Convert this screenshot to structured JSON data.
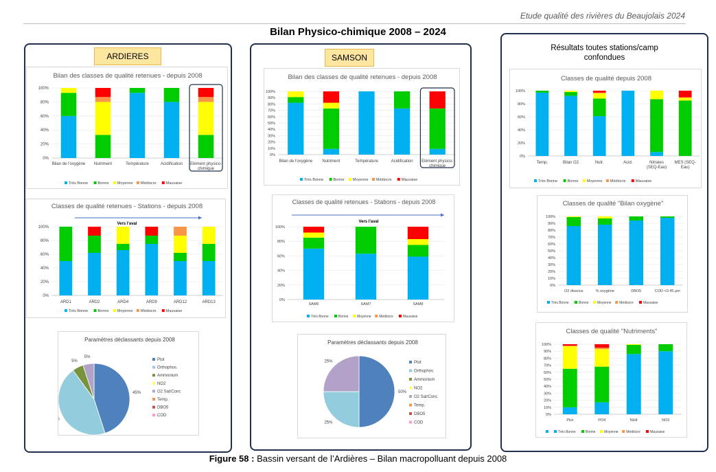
{
  "header": {
    "doc_title": "Etude qualité des rivières du Beaujolais 2024"
  },
  "main_title": "Bilan Physico-chimique 2008 – 2024",
  "caption": {
    "bold": "Figure 58 :",
    "text": " Bassin versant de l’Ardières – Bilan macropolluant depuis 2008"
  },
  "colors": {
    "tres_bonne": "#00b0f0",
    "bonne": "#00cc00",
    "moyenne": "#ffff00",
    "mediocre": "#f79646",
    "mauvaise": "#ff0000",
    "panel_border": "#1f2f4e",
    "site_label_bg": "#fde6a0"
  },
  "panels": {
    "ardieres": {
      "label": "ARDIERES"
    },
    "samson": {
      "label": "SAMSON"
    },
    "results": {
      "title_line1": "Résultats toutes stations/camp",
      "title_line2": "confondues"
    }
  },
  "chart_data": [
    {
      "id": "ard_classes",
      "type": "bar",
      "stacked": true,
      "title": "Bilan des classes de qualité retenues - depuis 2008",
      "categories": [
        [
          "Bilan de l'oxygène"
        ],
        [
          "Nutriment"
        ],
        [
          "Température"
        ],
        [
          "Acidification"
        ],
        [
          "Elément physico-",
          "chimique"
        ]
      ],
      "series": [
        {
          "name": "Très Bonne",
          "values": [
            60,
            0,
            93,
            80,
            0
          ]
        },
        {
          "name": "Bonne",
          "values": [
            33,
            33,
            7,
            20,
            33
          ]
        },
        {
          "name": "Moyenne",
          "values": [
            7,
            47,
            0,
            0,
            47
          ]
        },
        {
          "name": "Médiocre",
          "values": [
            0,
            7,
            0,
            0,
            7
          ]
        },
        {
          "name": "Mauvaise",
          "values": [
            0,
            13,
            0,
            0,
            13
          ]
        }
      ],
      "y_ticks": [
        "0%",
        "20%",
        "40%",
        "60%",
        "80%",
        "100%"
      ],
      "ylim": [
        0,
        100
      ],
      "highlight_last": true
    },
    {
      "id": "ard_stations",
      "type": "bar",
      "stacked": true,
      "title": "Classes de qualité retenues  - Stations - depuis 2008",
      "annotation": "Vers l'aval",
      "categories": [
        [
          "ARD1"
        ],
        [
          "ARD2"
        ],
        [
          "ARD4"
        ],
        [
          "ARD9"
        ],
        [
          "ARD12"
        ],
        [
          "ARD13"
        ]
      ],
      "series": [
        {
          "name": "Très Bonne",
          "values": [
            50,
            62,
            66,
            75,
            50,
            50
          ]
        },
        {
          "name": "Bonne",
          "values": [
            50,
            25,
            9,
            12,
            12,
            25
          ]
        },
        {
          "name": "Moyenne",
          "values": [
            0,
            0,
            25,
            0,
            25,
            25
          ]
        },
        {
          "name": "Médiocre",
          "values": [
            0,
            0,
            0,
            0,
            13,
            0
          ]
        },
        {
          "name": "Mauvaise",
          "values": [
            0,
            13,
            0,
            13,
            0,
            0
          ]
        }
      ],
      "y_ticks": [
        "0%",
        "20%",
        "40%",
        "60%",
        "80%",
        "100%"
      ],
      "ylim": [
        0,
        100
      ]
    },
    {
      "id": "ard_pie",
      "type": "pie",
      "title": "Paramètres déclassants depuis 2008",
      "legend": [
        "Ptot",
        "Orthophos.",
        "Ammonium",
        "NO2",
        "O2 Sat/Conc",
        "Temp.",
        "DBO5",
        "COD"
      ],
      "legend_colors": [
        "#4f81bd",
        "#93cddd",
        "#77933c",
        "#ffff66",
        "#b3a2c7",
        "#f79646",
        "#c0504d",
        "#ff99cc"
      ],
      "slices": [
        {
          "name": "Ptot",
          "value": 45,
          "label": "45%",
          "color": "#4f81bd"
        },
        {
          "name": "Orthophos.",
          "value": 45,
          "label": "45%",
          "color": "#93cddd"
        },
        {
          "name": "Ammonium",
          "value": 5,
          "label": "5%",
          "color": "#77933c"
        },
        {
          "name": "O2 Sat/Conc",
          "value": 5,
          "label": "5%",
          "color": "#b3a2c7"
        }
      ]
    },
    {
      "id": "sam_classes",
      "type": "bar",
      "stacked": true,
      "title": "Bilan des classes de qualité retenues - depuis 2008",
      "categories": [
        [
          "Bilan de l'oxygène"
        ],
        [
          "Nutriment"
        ],
        [
          "Température"
        ],
        [
          "Acidification"
        ],
        [
          "Elément physico-",
          "chimique"
        ]
      ],
      "series": [
        {
          "name": "Très Bonne",
          "values": [
            82,
            9,
            100,
            73,
            9
          ]
        },
        {
          "name": "Bonne",
          "values": [
            9,
            64,
            0,
            27,
            64
          ]
        },
        {
          "name": "Moyenne",
          "values": [
            9,
            9,
            0,
            0,
            0
          ]
        },
        {
          "name": "Médiocre",
          "values": [
            0,
            0,
            0,
            0,
            0
          ]
        },
        {
          "name": "Mauvaise",
          "values": [
            0,
            18,
            0,
            0,
            27
          ]
        }
      ],
      "y_ticks": [
        "0%",
        "10%",
        "20%",
        "30%",
        "40%",
        "50%",
        "60%",
        "70%",
        "80%",
        "90%",
        "100%"
      ],
      "ylim": [
        0,
        100
      ],
      "highlight_last": true
    },
    {
      "id": "sam_stations",
      "type": "bar",
      "stacked": true,
      "title": "Classes de qualité retenues  - Stations - depuis 2008",
      "annotation": "Vers l'aval",
      "categories": [
        [
          "SAM6"
        ],
        [
          "SAM7"
        ],
        [
          "SAM8"
        ]
      ],
      "series": [
        {
          "name": "Très Bonne",
          "values": [
            70,
            63,
            59
          ]
        },
        {
          "name": "Bonne",
          "values": [
            15,
            37,
            16
          ]
        },
        {
          "name": "Moyenne",
          "values": [
            7,
            0,
            8
          ]
        },
        {
          "name": "Médiocre",
          "values": [
            0,
            0,
            0
          ]
        },
        {
          "name": "Mauvaise",
          "values": [
            8,
            0,
            17
          ]
        }
      ],
      "y_ticks": [
        "0%",
        "20%",
        "40%",
        "60%",
        "80%",
        "100%"
      ],
      "ylim": [
        0,
        100
      ]
    },
    {
      "id": "sam_pie",
      "type": "pie",
      "title": "Paramètres déclassants depuis 2008",
      "legend": [
        "Ptot",
        "Orthophos.",
        "Ammonium",
        "NO2",
        "O2 Sat/Conc",
        "Temp.",
        "DBO5",
        "COD"
      ],
      "legend_colors": [
        "#4f81bd",
        "#93cddd",
        "#77933c",
        "#ffff66",
        "#b3a2c7",
        "#f79646",
        "#c0504d",
        "#ff99cc"
      ],
      "slices": [
        {
          "name": "Ptot",
          "value": 50,
          "label": "50%",
          "color": "#4f81bd"
        },
        {
          "name": "Orthophos.",
          "value": 25,
          "label": "25%",
          "color": "#93cddd"
        },
        {
          "name": "O2 Sat/Conc",
          "value": 25,
          "label": "25%",
          "color": "#b3a2c7"
        }
      ]
    },
    {
      "id": "res_classes",
      "type": "bar",
      "stacked": true,
      "title": "Classes de qualité depuis 2008",
      "categories": [
        [
          "Temp."
        ],
        [
          "Bilan O2"
        ],
        [
          "Nutr."
        ],
        [
          "Acid."
        ],
        [
          "Nitrates",
          "(SEQ-Eau)"
        ],
        [
          "MES (SEQ-",
          "Eau)"
        ]
      ],
      "series": [
        {
          "name": "Très Bonne",
          "values": [
            97,
            92,
            61,
            100,
            6,
            0
          ]
        },
        {
          "name": "Bonne",
          "values": [
            3,
            6,
            27,
            0,
            81,
            85
          ]
        },
        {
          "name": "Moyenne",
          "values": [
            0,
            2,
            8,
            0,
            13,
            4
          ]
        },
        {
          "name": "Médiocre",
          "values": [
            0,
            0,
            1,
            0,
            0,
            1
          ]
        },
        {
          "name": "Mauvaise",
          "values": [
            0,
            0,
            3,
            0,
            0,
            10
          ]
        }
      ],
      "y_ticks": [
        "0%",
        "20%",
        "40%",
        "60%",
        "80%",
        "100%"
      ],
      "ylim": [
        0,
        100
      ]
    },
    {
      "id": "res_oxygene",
      "type": "bar",
      "stacked": true,
      "title": "Classes de qualité \"Bilan oxygène\"",
      "categories": [
        [
          "O2 dissous"
        ],
        [
          "% oxygène"
        ],
        [
          "DBO5"
        ],
        [
          "COD <0.45 µm"
        ]
      ],
      "series": [
        {
          "name": "Très Bonne",
          "values": [
            86,
            88,
            94,
            98
          ]
        },
        {
          "name": "Bonne",
          "values": [
            13,
            9,
            6,
            2
          ]
        },
        {
          "name": "Moyenne",
          "values": [
            1,
            3,
            0,
            0
          ]
        },
        {
          "name": "Médiocre",
          "values": [
            0,
            0,
            0,
            0
          ]
        },
        {
          "name": "Mauvaise",
          "values": [
            0,
            0,
            0,
            0
          ]
        }
      ],
      "y_ticks": [
        "0%",
        "10%",
        "20%",
        "30%",
        "40%",
        "50%",
        "60%",
        "70%",
        "80%",
        "90%",
        "100%"
      ],
      "ylim": [
        0,
        100
      ]
    },
    {
      "id": "res_nutriments",
      "type": "bar",
      "stacked": true,
      "title": "Classes de qualité \"Nutriments\"",
      "categories": [
        [
          "Ptot"
        ],
        [
          "PO4"
        ],
        [
          "NH4"
        ],
        [
          "NO2"
        ]
      ],
      "series": [
        {
          "name": "Très Bonne",
          "values": [
            10,
            17,
            86,
            90
          ]
        },
        {
          "name": "Bonne",
          "values": [
            55,
            51,
            13,
            10
          ]
        },
        {
          "name": "Moyenne",
          "values": [
            32,
            25,
            1,
            0
          ]
        },
        {
          "name": "Médiocre",
          "values": [
            1,
            2,
            0,
            0
          ]
        },
        {
          "name": "Mauvaise",
          "values": [
            2,
            5,
            0,
            0
          ]
        }
      ],
      "y_ticks": [
        "0%",
        "10%",
        "20%",
        "30%",
        "40%",
        "50%",
        "60%",
        "70%",
        "80%",
        "90%",
        "100%"
      ],
      "ylim": [
        0,
        100
      ]
    }
  ]
}
